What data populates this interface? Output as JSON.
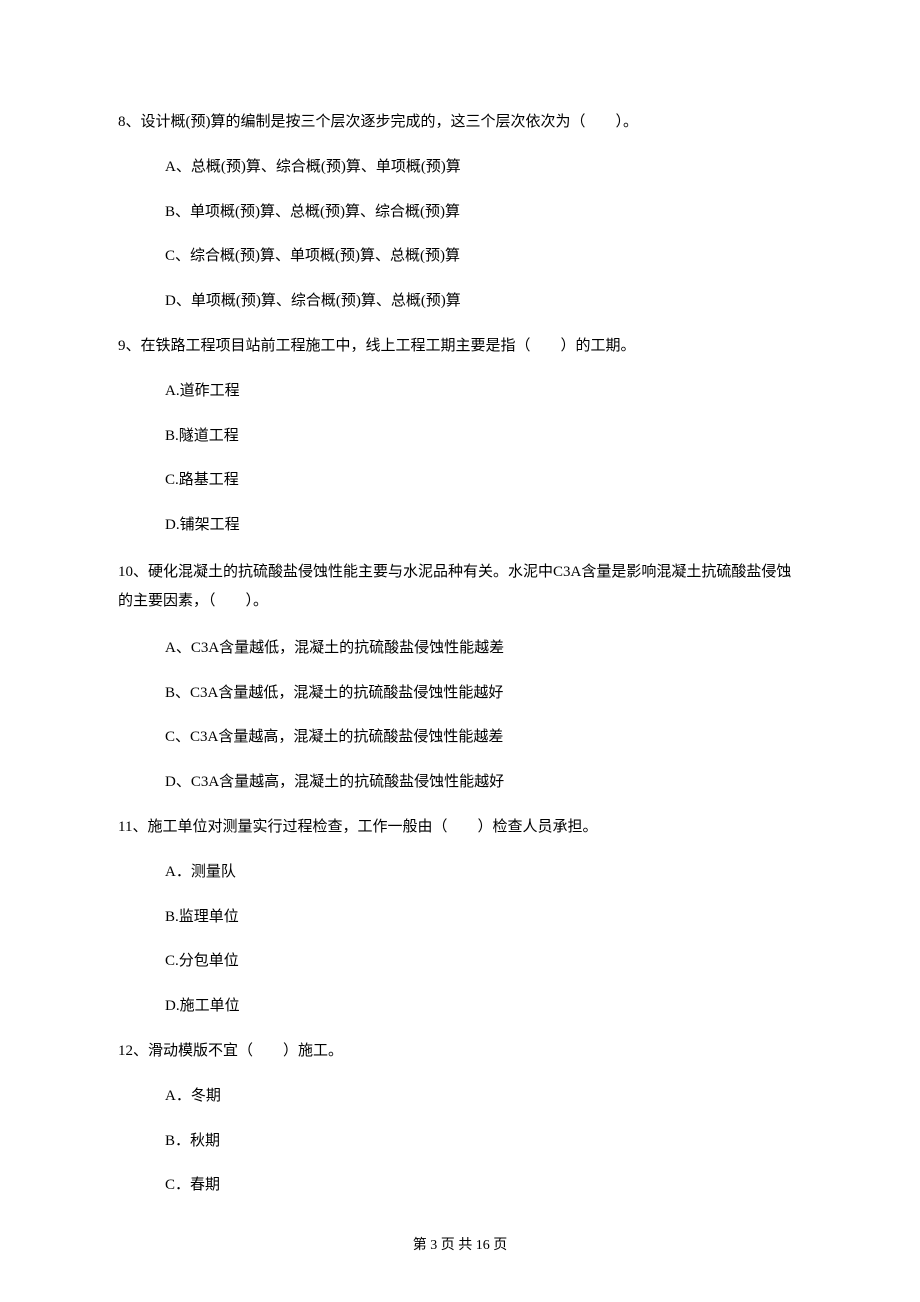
{
  "questions": [
    {
      "number": "8",
      "text": "8、设计概(预)算的编制是按三个层次逐步完成的，这三个层次依次为（　　）。",
      "options": [
        "A、总概(预)算、综合概(预)算、单项概(预)算",
        "B、单项概(预)算、总概(预)算、综合概(预)算",
        "C、综合概(预)算、单项概(预)算、总概(预)算",
        "D、单项概(预)算、综合概(预)算、总概(预)算"
      ]
    },
    {
      "number": "9",
      "text": "9、在铁路工程项目站前工程施工中，线上工程工期主要是指（　　）的工期。",
      "options": [
        "A.道砟工程",
        "B.隧道工程",
        "C.路基工程",
        "D.铺架工程"
      ]
    },
    {
      "number": "10",
      "text": "10、硬化混凝土的抗硫酸盐侵蚀性能主要与水泥品种有关。水泥中C3A含量是影响混凝土抗硫酸盐侵蚀的主要因素，（　　）。",
      "options": [
        "A、C3A含量越低，混凝土的抗硫酸盐侵蚀性能越差",
        "B、C3A含量越低，混凝土的抗硫酸盐侵蚀性能越好",
        "C、C3A含量越高，混凝土的抗硫酸盐侵蚀性能越差",
        "D、C3A含量越高，混凝土的抗硫酸盐侵蚀性能越好"
      ]
    },
    {
      "number": "11",
      "text": "11、施工单位对测量实行过程检查，工作一般由（　　）检查人员承担。",
      "options": [
        "A．测量队",
        "B.监理单位",
        "C.分包单位",
        "D.施工单位"
      ]
    },
    {
      "number": "12",
      "text": "12、滑动模版不宜（　　）施工。",
      "options": [
        "A．冬期",
        "B．秋期",
        "C．春期"
      ]
    }
  ],
  "footer": {
    "text": "第 3 页 共 16 页"
  },
  "styles": {
    "background_color": "#ffffff",
    "text_color": "#000000",
    "font_family": "SimSun",
    "question_fontsize": 15,
    "option_fontsize": 15,
    "footer_fontsize": 14,
    "option_indent": 47
  }
}
